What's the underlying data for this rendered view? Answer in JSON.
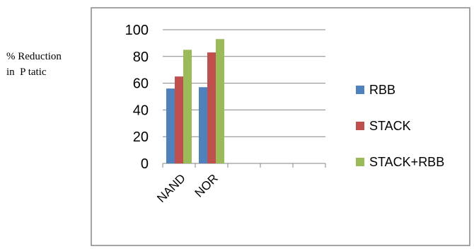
{
  "chart_data": {
    "type": "bar",
    "title": "",
    "ylabel_lines": [
      "% Reduction",
      "in  P tatic"
    ],
    "xlabel": "",
    "categories": [
      "NAND",
      "NOR",
      "",
      "",
      ""
    ],
    "series": [
      {
        "name": "RBB",
        "values": [
          56,
          57,
          null,
          null,
          null
        ]
      },
      {
        "name": "STACK",
        "values": [
          65,
          83,
          null,
          null,
          null
        ]
      },
      {
        "name": "STACK+RBB",
        "values": [
          85,
          93,
          null,
          null,
          null
        ]
      }
    ],
    "ylim": [
      0,
      100
    ],
    "yticks": [
      0,
      20,
      40,
      60,
      80,
      100
    ],
    "grid": true,
    "legend_position": "right"
  },
  "colors": {
    "RBB": "#4f81bd",
    "STACK": "#c0504d",
    "STACK+RBB": "#9bbb59",
    "gridline": "#868686",
    "frame": "#868686"
  }
}
